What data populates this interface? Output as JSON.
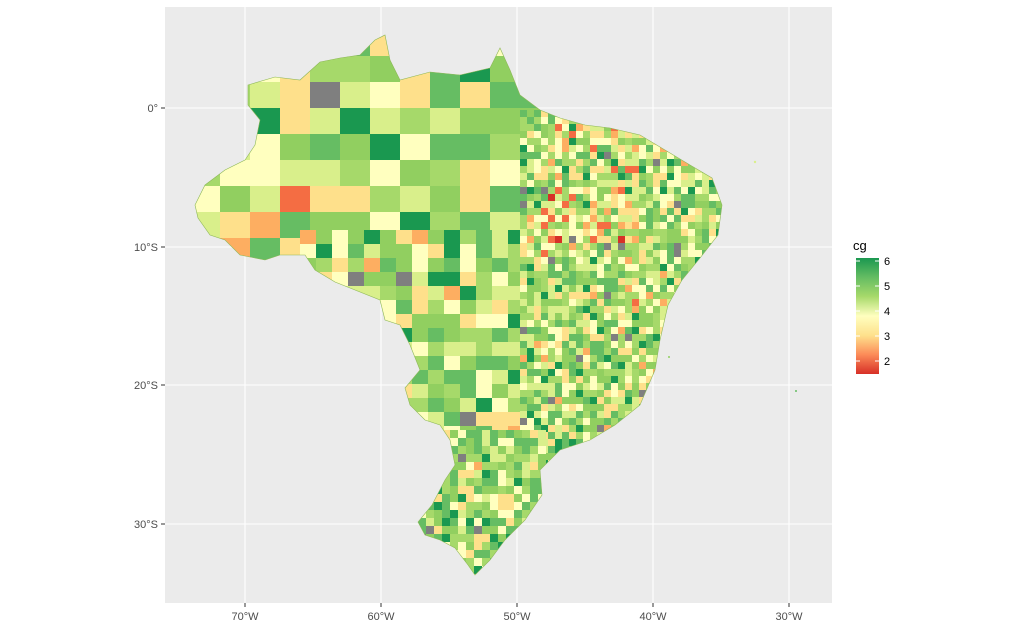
{
  "map": {
    "x_ticks": [
      "70°W",
      "60°W",
      "50°W",
      "40°W",
      "30°W"
    ],
    "y_ticks": [
      "0°",
      "10°S",
      "20°S",
      "30°S"
    ],
    "panel_background": "#ebebeb",
    "grid_color": "#ffffff",
    "na_color": "#7f7f7f"
  },
  "legend": {
    "title": "cg",
    "labels": [
      "6",
      "5",
      "4",
      "3",
      "2"
    ],
    "palette": [
      "#1a9850",
      "#91cf60",
      "#d9ef8b",
      "#ffffbf",
      "#fee08b",
      "#fc8d59",
      "#d73027"
    ]
  }
}
